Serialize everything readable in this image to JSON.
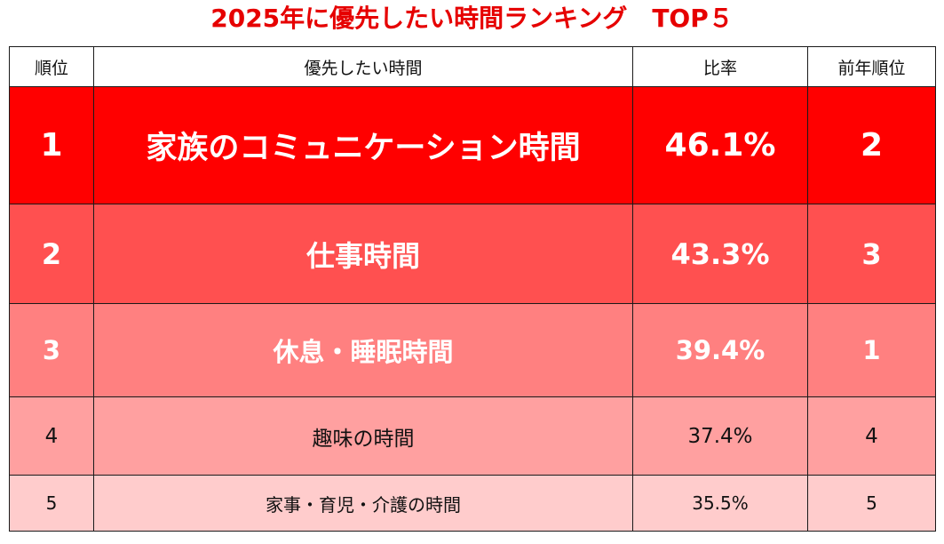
{
  "title": "2025年に優先したい時間ランキング　TOP５",
  "headers": {
    "rank": "順位",
    "item": "優先したい時間",
    "ratio": "比率",
    "prev_rank": "前年順位"
  },
  "colors": {
    "title": "#e60000",
    "row1": "#ff0000",
    "row2": "#ff5050",
    "row3": "#ff8080",
    "row4": "#ffa0a0",
    "row5": "#ffcccc",
    "border": "#1a1a1a"
  },
  "chart_data": {
    "type": "table",
    "title": "2025年に優先したい時間ランキング　TOP５",
    "columns": [
      "順位",
      "優先したい時間",
      "比率",
      "前年順位"
    ],
    "rows": [
      {
        "rank": "1",
        "item": "家族のコミュニケーション時間",
        "ratio": "46.1%",
        "prev_rank": "2"
      },
      {
        "rank": "2",
        "item": "仕事時間",
        "ratio": "43.3%",
        "prev_rank": "3"
      },
      {
        "rank": "3",
        "item": "休息・睡眠時間",
        "ratio": "39.4%",
        "prev_rank": "1"
      },
      {
        "rank": "4",
        "item": "趣味の時間",
        "ratio": "37.4%",
        "prev_rank": "4"
      },
      {
        "rank": "5",
        "item": "家事・育児・介護の時間",
        "ratio": "35.5%",
        "prev_rank": "5"
      }
    ]
  }
}
